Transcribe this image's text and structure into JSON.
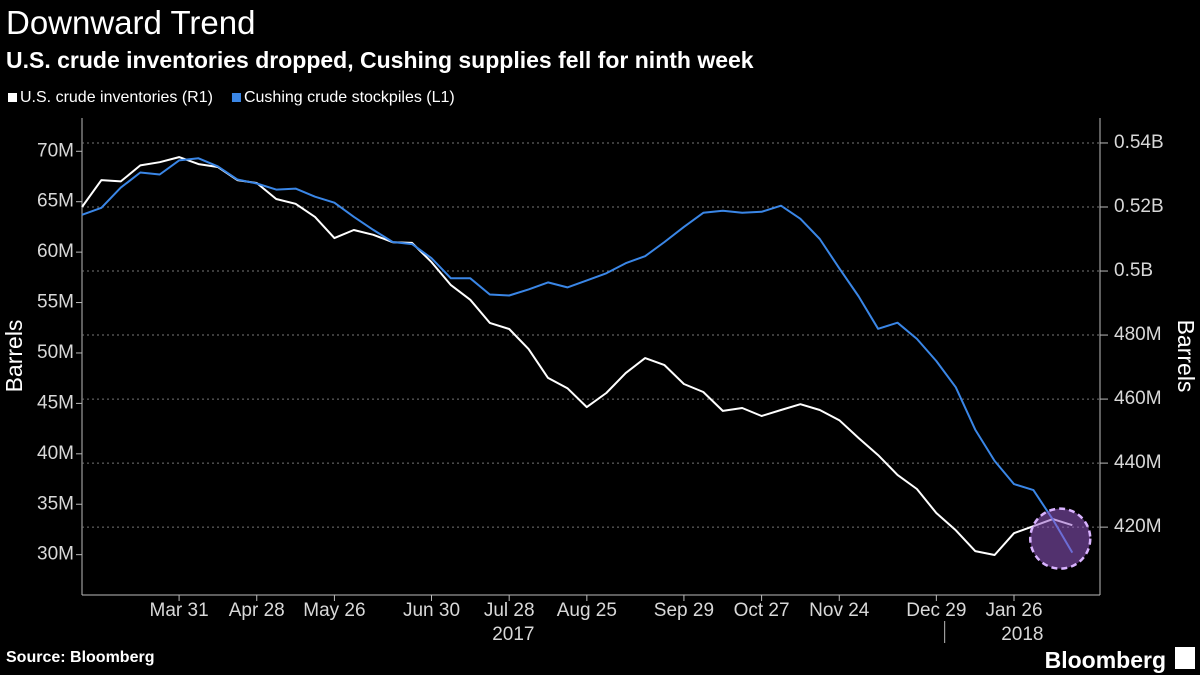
{
  "chart_data": {
    "type": "line",
    "title": "Downward Trend",
    "subtitle": "U.S. crude inventories dropped, Cushing supplies fell for ninth week",
    "ylabel": "Barrels",
    "y2label": "Barrels",
    "source": "Source: Bloomberg",
    "brand": "Bloomberg",
    "x": [
      "2017-02-24",
      "2017-03-03",
      "2017-03-10",
      "2017-03-17",
      "2017-03-24",
      "2017-03-31",
      "2017-04-07",
      "2017-04-14",
      "2017-04-21",
      "2017-04-28",
      "2017-05-05",
      "2017-05-12",
      "2017-05-19",
      "2017-05-26",
      "2017-06-02",
      "2017-06-09",
      "2017-06-16",
      "2017-06-23",
      "2017-06-30",
      "2017-07-07",
      "2017-07-14",
      "2017-07-21",
      "2017-07-28",
      "2017-08-04",
      "2017-08-11",
      "2017-08-18",
      "2017-08-25",
      "2017-09-01",
      "2017-09-08",
      "2017-09-15",
      "2017-09-22",
      "2017-09-29",
      "2017-10-06",
      "2017-10-13",
      "2017-10-20",
      "2017-10-27",
      "2017-11-03",
      "2017-11-10",
      "2017-11-17",
      "2017-11-24",
      "2017-12-01",
      "2017-12-08",
      "2017-12-15",
      "2017-12-22",
      "2017-12-29",
      "2018-01-05",
      "2018-01-12",
      "2018-01-19",
      "2018-01-26",
      "2018-02-02",
      "2018-02-09",
      "2018-02-16"
    ],
    "xlim": [
      "2017-02-24",
      "2018-02-26"
    ],
    "xticks": [
      {
        "value": "2017-03-31",
        "label": "Mar 31"
      },
      {
        "value": "2017-04-28",
        "label": "Apr 28"
      },
      {
        "value": "2017-05-26",
        "label": "May 26"
      },
      {
        "value": "2017-06-30",
        "label": "Jun 30"
      },
      {
        "value": "2017-07-28",
        "label": "Jul 28"
      },
      {
        "value": "2017-08-25",
        "label": "Aug 25"
      },
      {
        "value": "2017-09-29",
        "label": "Sep 29"
      },
      {
        "value": "2017-10-27",
        "label": "Oct 27"
      },
      {
        "value": "2017-11-24",
        "label": "Nov 24"
      },
      {
        "value": "2017-12-29",
        "label": "Dec 29"
      },
      {
        "value": "2018-01-26",
        "label": "Jan 26"
      }
    ],
    "x_year_labels": [
      "2017",
      "2018"
    ],
    "ylim": [
      26,
      73.3
    ],
    "yticks": [
      {
        "value": 30,
        "label": "30M"
      },
      {
        "value": 35,
        "label": "35M"
      },
      {
        "value": 40,
        "label": "40M"
      },
      {
        "value": 45,
        "label": "45M"
      },
      {
        "value": 50,
        "label": "50M"
      },
      {
        "value": 55,
        "label": "55M"
      },
      {
        "value": 60,
        "label": "60M"
      },
      {
        "value": 65,
        "label": "65M"
      },
      {
        "value": 70,
        "label": "70M"
      }
    ],
    "y2lim": [
      398.8,
      547.8
    ],
    "y2ticks": [
      {
        "value": 420,
        "label": "420M"
      },
      {
        "value": 440,
        "label": "440M"
      },
      {
        "value": 460,
        "label": "460M"
      },
      {
        "value": 480,
        "label": "480M"
      },
      {
        "value": 500,
        "label": "0.5B"
      },
      {
        "value": 520,
        "label": "0.52B"
      },
      {
        "value": 540,
        "label": "0.54B"
      }
    ],
    "grid": true,
    "legend": "top-left",
    "series": [
      {
        "name": "U.S. crude inventories (R1)",
        "color": "#ffffff",
        "axis": "y2",
        "values": [
          520,
          528.4,
          528,
          533,
          534,
          535.6,
          533.4,
          532.5,
          528.4,
          527.5,
          522.5,
          521,
          516.9,
          510.3,
          512.8,
          511.3,
          509,
          508.8,
          502.8,
          495.6,
          491,
          483.8,
          481.9,
          475.6,
          466.6,
          463.4,
          457.5,
          461.9,
          468.1,
          472.8,
          470.6,
          464.7,
          462.2,
          456.3,
          457.2,
          454.7,
          456.6,
          458.4,
          456.6,
          453.4,
          447.8,
          442.5,
          436.3,
          431.9,
          424.4,
          419,
          412.5,
          411.3,
          418.1,
          420.3,
          422.5,
          420.6
        ]
      },
      {
        "name": "Cushing crude stockpiles (L1)",
        "color": "#3a86e6",
        "axis": "y",
        "values": [
          63.7,
          64.4,
          66.4,
          67.9,
          67.7,
          69.1,
          69.3,
          68.5,
          67.2,
          66.8,
          66.2,
          66.3,
          65.5,
          64.9,
          63.5,
          62.2,
          61,
          60.8,
          59.4,
          57.4,
          57.4,
          55.8,
          55.7,
          56.3,
          57,
          56.5,
          57.2,
          57.9,
          58.9,
          59.6,
          61,
          62.5,
          63.9,
          64.1,
          63.9,
          64,
          64.6,
          63.3,
          61.3,
          58.4,
          55.6,
          52.4,
          53,
          51.4,
          49.2,
          46.6,
          42.4,
          39.3,
          37,
          36.4,
          33.5,
          30.2
        ]
      }
    ]
  }
}
